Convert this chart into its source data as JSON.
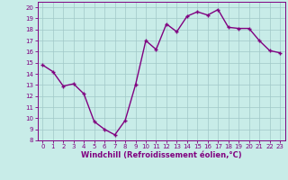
{
  "x": [
    0,
    1,
    2,
    3,
    4,
    5,
    6,
    7,
    8,
    9,
    10,
    11,
    12,
    13,
    14,
    15,
    16,
    17,
    18,
    19,
    20,
    21,
    22,
    23
  ],
  "y": [
    14.8,
    14.2,
    12.9,
    13.1,
    12.2,
    9.7,
    9.0,
    8.5,
    9.8,
    13.0,
    17.0,
    16.2,
    18.5,
    17.8,
    19.2,
    19.6,
    19.3,
    19.8,
    18.2,
    18.1,
    18.1,
    17.0,
    16.1,
    15.9
  ],
  "line_color": "#800080",
  "marker": "+",
  "marker_size": 3.5,
  "marker_lw": 1.0,
  "bg_color": "#c8ece8",
  "grid_color": "#a0c8c8",
  "xlabel": "Windchill (Refroidissement éolien,°C)",
  "xlabel_color": "#800080",
  "tick_color": "#800080",
  "spine_color": "#800080",
  "xlim": [
    -0.5,
    23.5
  ],
  "ylim": [
    8,
    20.5
  ],
  "yticks": [
    8,
    9,
    10,
    11,
    12,
    13,
    14,
    15,
    16,
    17,
    18,
    19,
    20
  ],
  "xticks": [
    0,
    1,
    2,
    3,
    4,
    5,
    6,
    7,
    8,
    9,
    10,
    11,
    12,
    13,
    14,
    15,
    16,
    17,
    18,
    19,
    20,
    21,
    22,
    23
  ],
  "tick_fontsize": 5.0,
  "xlabel_fontsize": 6.0,
  "line_width": 1.0
}
